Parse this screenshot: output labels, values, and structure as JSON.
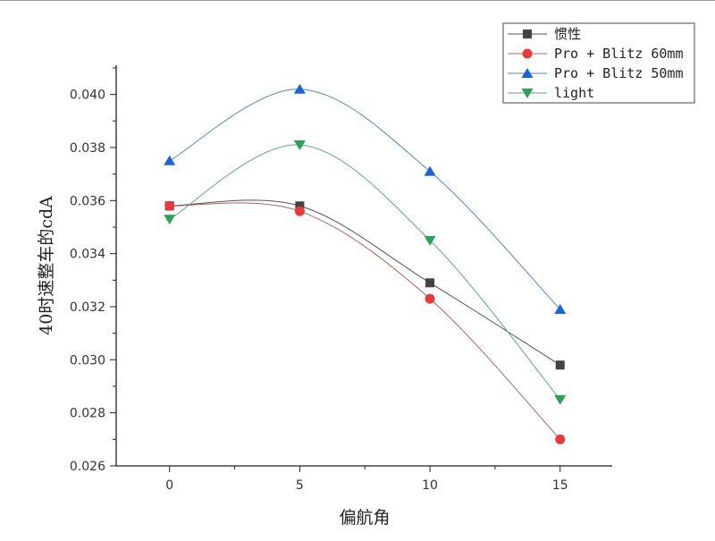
{
  "chart_data": {
    "type": "line",
    "title": "",
    "xlabel": "偏航角",
    "ylabel": "40时速整车的cdA",
    "x": [
      0,
      5,
      10,
      15
    ],
    "xticks": [
      "0",
      "5",
      "10",
      "15"
    ],
    "yticks": [
      "0.026",
      "0.028",
      "0.030",
      "0.032",
      "0.034",
      "0.036",
      "0.038",
      "0.040"
    ],
    "xlim": [
      -2.05,
      17.0
    ],
    "ylim": [
      0.026,
      0.0411
    ],
    "grid": false,
    "smooth": true,
    "legend_position": "top-right",
    "series": [
      {
        "name": "惯性",
        "values": [
          0.0358,
          0.0358,
          0.0329,
          0.0298
        ],
        "color": "#444444",
        "line_color": "#555555",
        "marker": "square"
      },
      {
        "name": "Pro + Blitz 60mm",
        "values": [
          0.0358,
          0.0356,
          0.0323,
          0.027
        ],
        "color": "#e83a3a",
        "line_color": "#b06060",
        "marker": "circle"
      },
      {
        "name": "Pro + Blitz 50mm",
        "values": [
          0.0375,
          0.0402,
          0.0371,
          0.0319
        ],
        "color": "#1e63d6",
        "line_color": "#5a8ab0",
        "marker": "triangle-up"
      },
      {
        "name": "light",
        "values": [
          0.0353,
          0.0381,
          0.0345,
          0.0285
        ],
        "color": "#2ea05a",
        "line_color": "#5aaa80",
        "marker": "triangle-down"
      }
    ]
  }
}
